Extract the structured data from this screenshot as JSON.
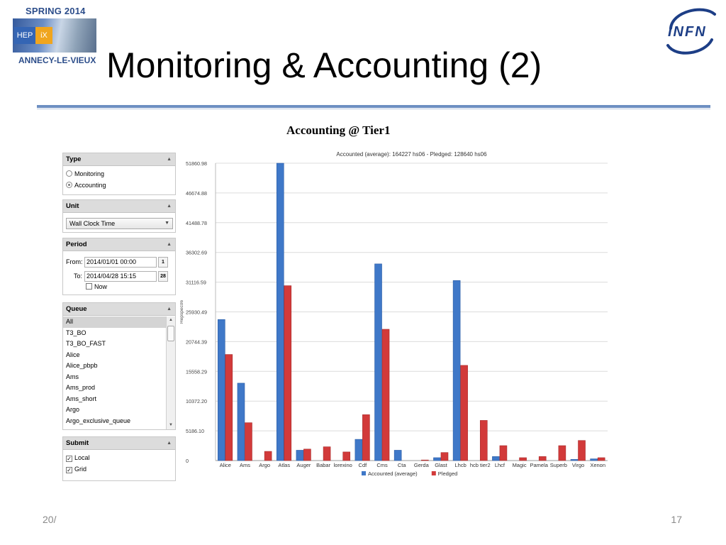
{
  "slide": {
    "logo_left_top": "SPRING 2014",
    "logo_left_mark_he": "HEP",
    "logo_left_mark_ix": "iX",
    "logo_left_bottom": "ANNECY-LE-VIEUX",
    "logo_right": "INFN",
    "title": "Monitoring & Accounting (2)",
    "footer_date": "20/",
    "page_number": "17"
  },
  "screenshot": {
    "title": "Accounting @ Tier1",
    "type_panel": {
      "header": "Type",
      "options": [
        {
          "label": "Monitoring",
          "selected": false
        },
        {
          "label": "Accounting",
          "selected": true
        }
      ]
    },
    "unit_panel": {
      "header": "Unit",
      "selected": "Wall Clock Time"
    },
    "period_panel": {
      "header": "Period",
      "from_label": "From:",
      "from_value": "2014/01/01 00:00",
      "from_cal": "1",
      "to_label": "To:",
      "to_value": "2014/04/28 15:15",
      "to_cal": "28",
      "now_label": "Now",
      "now_checked": false
    },
    "queue_panel": {
      "header": "Queue",
      "items": [
        "All",
        "T3_BO",
        "T3_BO_FAST",
        "Alice",
        "Alice_pbpb",
        "Ams",
        "Ams_prod",
        "Ams_short",
        "Argo",
        "Argo_exclusive_queue"
      ],
      "selected_index": 0
    },
    "submit_panel": {
      "header": "Submit",
      "options": [
        {
          "label": "Local",
          "checked": true
        },
        {
          "label": "Grid",
          "checked": true
        }
      ]
    }
  },
  "chart_data": {
    "type": "bar",
    "subtitle": "Accounted (average): 164227 hs06 - Pledged: 128640 hs06",
    "ylabel": "Hepspec06",
    "ylim": [
      0,
      51860.98
    ],
    "yticks": [
      "0",
      "5186.10",
      "10372.20",
      "15558.29",
      "20744.39",
      "25930.49",
      "31116.59",
      "36302.69",
      "41488.78",
      "46674.88",
      "51860.98"
    ],
    "categories": [
      "Alice",
      "Ams",
      "Argo",
      "Atlas",
      "Auger",
      "Babar",
      "lorexino",
      "Cdf",
      "Cms",
      "Cta",
      "Gerda",
      "Glast",
      "Lhcb",
      "hcb tier2",
      "Lhcf",
      "Magic",
      "Pamela",
      "Superb",
      "Virgo",
      "Xenon"
    ],
    "series": [
      {
        "name": "Accounted (average)",
        "color": "#3f78c8",
        "values": [
          24600,
          13500,
          0,
          51860,
          1800,
          0,
          0,
          3700,
          34300,
          1800,
          0,
          500,
          31400,
          0,
          700,
          0,
          0,
          0,
          200,
          300
        ]
      },
      {
        "name": "Pledged",
        "color": "#d23a3a",
        "values": [
          18500,
          6600,
          1600,
          30500,
          2000,
          2400,
          1500,
          8000,
          22900,
          0,
          100,
          1400,
          16600,
          7000,
          2600,
          500,
          700,
          2600,
          3500,
          500
        ]
      }
    ],
    "grid": true,
    "legend": "bottom"
  }
}
